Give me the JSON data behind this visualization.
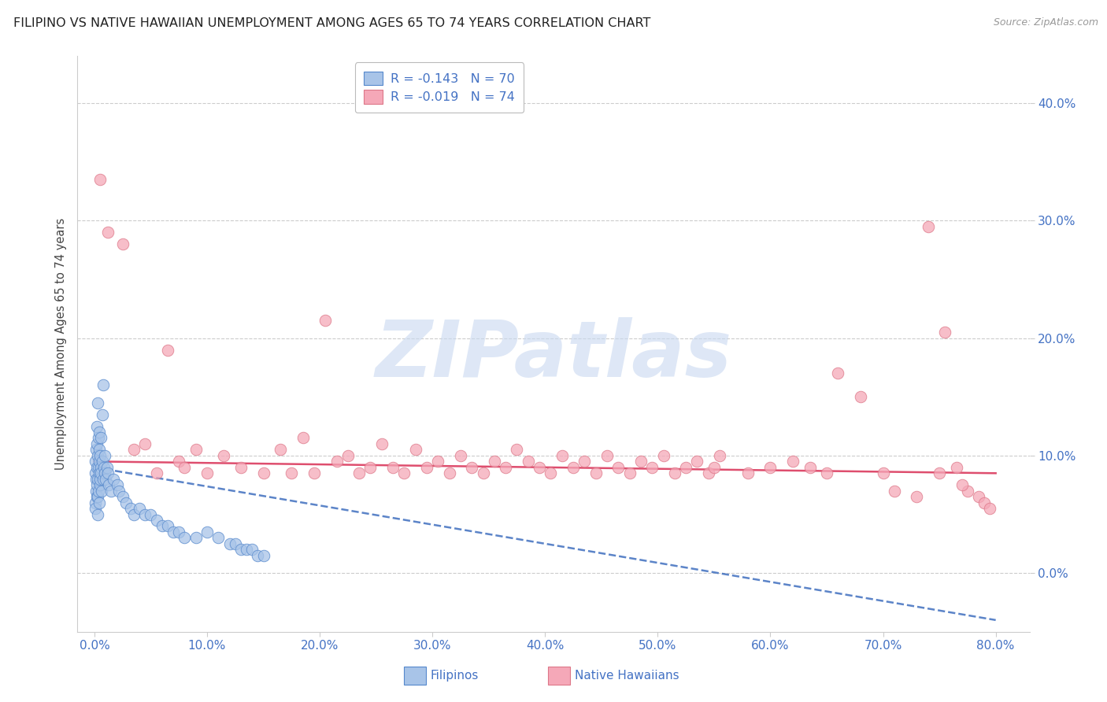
{
  "title": "FILIPINO VS NATIVE HAWAIIAN UNEMPLOYMENT AMONG AGES 65 TO 74 YEARS CORRELATION CHART",
  "source": "Source: ZipAtlas.com",
  "ylabel": "Unemployment Among Ages 65 to 74 years",
  "xtick_vals": [
    0,
    10,
    20,
    30,
    40,
    50,
    60,
    70,
    80
  ],
  "xtick_labels": [
    "0.0%",
    "10.0%",
    "20.0%",
    "30.0%",
    "40.0%",
    "50.0%",
    "60.0%",
    "70.0%",
    "80.0%"
  ],
  "ytick_vals": [
    0,
    10,
    20,
    30,
    40
  ],
  "ytick_labels": [
    "0.0%",
    "10.0%",
    "20.0%",
    "30.0%",
    "40.0%"
  ],
  "xlim": [
    -1.5,
    83
  ],
  "ylim": [
    -5,
    44
  ],
  "filipino_dot_color": "#a8c4e8",
  "filipino_edge_color": "#5588cc",
  "hawaiian_dot_color": "#f5a8b8",
  "hawaiian_edge_color": "#dd7788",
  "trendline_fil_color": "#3366bb",
  "trendline_haw_color": "#dd4466",
  "axis_color": "#4472c4",
  "grid_color": "#cccccc",
  "watermark_color": "#c8d8f0",
  "legend_items": [
    {
      "label_r": "R = -0.143",
      "label_n": "N = 70",
      "dot_color": "#a8c4e8",
      "edge_color": "#5588cc"
    },
    {
      "label_r": "R = -0.019",
      "label_n": "N = 74",
      "dot_color": "#f5a8b8",
      "edge_color": "#dd7788"
    }
  ],
  "filipino_x": [
    0.05,
    0.08,
    0.1,
    0.1,
    0.12,
    0.15,
    0.18,
    0.2,
    0.2,
    0.22,
    0.25,
    0.25,
    0.28,
    0.3,
    0.3,
    0.3,
    0.32,
    0.35,
    0.35,
    0.38,
    0.4,
    0.4,
    0.42,
    0.45,
    0.45,
    0.5,
    0.5,
    0.52,
    0.55,
    0.6,
    0.6,
    0.65,
    0.7,
    0.7,
    0.75,
    0.8,
    0.85,
    0.9,
    0.95,
    1.0,
    1.1,
    1.2,
    1.3,
    1.5,
    1.7,
    2.0,
    2.2,
    2.5,
    2.8,
    3.2,
    3.5,
    4.0,
    4.5,
    5.0,
    5.5,
    6.0,
    6.5,
    7.0,
    7.5,
    8.0,
    9.0,
    10.0,
    11.0,
    12.0,
    12.5,
    13.0,
    13.5,
    14.0,
    14.5,
    15.0
  ],
  "filipino_y": [
    8.5,
    6.0,
    9.5,
    5.5,
    7.0,
    10.5,
    8.0,
    6.5,
    11.0,
    9.0,
    7.5,
    12.5,
    5.0,
    8.0,
    10.0,
    14.5,
    6.5,
    9.0,
    11.5,
    7.0,
    8.5,
    10.5,
    6.0,
    9.5,
    12.0,
    7.5,
    10.0,
    8.0,
    9.0,
    8.5,
    11.5,
    7.0,
    9.5,
    13.5,
    8.0,
    16.0,
    9.0,
    10.0,
    8.5,
    8.0,
    9.0,
    8.5,
    7.5,
    7.0,
    8.0,
    7.5,
    7.0,
    6.5,
    6.0,
    5.5,
    5.0,
    5.5,
    5.0,
    5.0,
    4.5,
    4.0,
    4.0,
    3.5,
    3.5,
    3.0,
    3.0,
    3.5,
    3.0,
    2.5,
    2.5,
    2.0,
    2.0,
    2.0,
    1.5,
    1.5
  ],
  "hawaiian_x": [
    0.5,
    1.2,
    2.5,
    3.5,
    4.5,
    5.5,
    6.5,
    7.5,
    8.0,
    9.0,
    10.0,
    11.5,
    13.0,
    15.0,
    16.5,
    17.5,
    18.5,
    19.5,
    20.5,
    21.5,
    22.5,
    23.5,
    24.5,
    25.5,
    26.5,
    27.5,
    28.5,
    29.5,
    30.5,
    31.5,
    32.5,
    33.5,
    34.5,
    35.5,
    36.5,
    37.5,
    38.5,
    39.5,
    40.5,
    41.5,
    42.5,
    43.5,
    44.5,
    45.5,
    46.5,
    47.5,
    48.5,
    49.5,
    50.5,
    51.5,
    52.5,
    53.5,
    54.5,
    55.0,
    55.5,
    58.0,
    60.0,
    62.0,
    63.5,
    65.0,
    66.0,
    68.0,
    70.0,
    71.0,
    73.0,
    74.0,
    75.5,
    76.5,
    77.5,
    78.5,
    79.0,
    79.5,
    75.0,
    77.0
  ],
  "hawaiian_y": [
    33.5,
    29.0,
    28.0,
    10.5,
    11.0,
    8.5,
    19.0,
    9.5,
    9.0,
    10.5,
    8.5,
    10.0,
    9.0,
    8.5,
    10.5,
    8.5,
    11.5,
    8.5,
    21.5,
    9.5,
    10.0,
    8.5,
    9.0,
    11.0,
    9.0,
    8.5,
    10.5,
    9.0,
    9.5,
    8.5,
    10.0,
    9.0,
    8.5,
    9.5,
    9.0,
    10.5,
    9.5,
    9.0,
    8.5,
    10.0,
    9.0,
    9.5,
    8.5,
    10.0,
    9.0,
    8.5,
    9.5,
    9.0,
    10.0,
    8.5,
    9.0,
    9.5,
    8.5,
    9.0,
    10.0,
    8.5,
    9.0,
    9.5,
    9.0,
    8.5,
    17.0,
    15.0,
    8.5,
    7.0,
    6.5,
    29.5,
    20.5,
    9.0,
    7.0,
    6.5,
    6.0,
    5.5,
    8.5,
    7.5
  ]
}
